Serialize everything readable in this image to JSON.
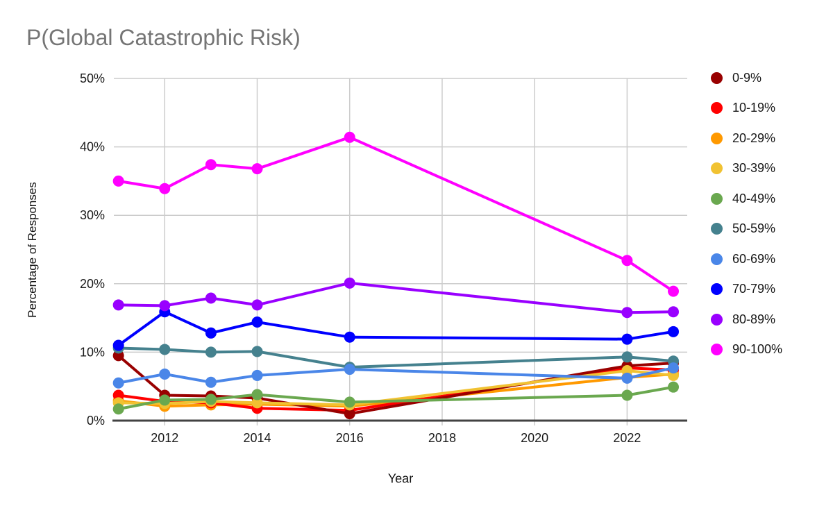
{
  "chart_data": {
    "type": "line",
    "title": "P(Global Catastrophic Risk)",
    "xlabel": "Year",
    "ylabel": "Percentage of Responses",
    "grid": true,
    "legend_position": "right",
    "marker": "circle",
    "x": [
      2011,
      2012,
      2013,
      2014,
      2016,
      2022,
      2023
    ],
    "x_ticks": [
      2012,
      2014,
      2016,
      2018,
      2020,
      2022
    ],
    "y_ticks": [
      "0%",
      "10%",
      "20%",
      "30%",
      "40%",
      "50%"
    ],
    "y_tick_values": [
      0,
      10,
      20,
      30,
      40,
      50
    ],
    "xlim": [
      2010.9,
      2023.3
    ],
    "ylim": [
      0,
      50
    ],
    "series": [
      {
        "name": "0-9%",
        "color": "#990000",
        "values": [
          9.5,
          3.7,
          3.6,
          3.3,
          1.0,
          8.0,
          8.4
        ]
      },
      {
        "name": "10-19%",
        "color": "#FF0000",
        "values": [
          3.7,
          2.8,
          2.6,
          1.8,
          1.5,
          7.7,
          7.4
        ]
      },
      {
        "name": "20-29%",
        "color": "#FF9900",
        "values": [
          2.9,
          2.1,
          2.3,
          2.4,
          2.1,
          6.3,
          6.8
        ]
      },
      {
        "name": "30-39%",
        "color": "#F1C232",
        "values": [
          2.6,
          2.5,
          2.8,
          2.6,
          2.3,
          7.3,
          6.6
        ]
      },
      {
        "name": "40-49%",
        "color": "#6AA84F",
        "values": [
          1.7,
          3.0,
          3.1,
          3.8,
          2.7,
          3.7,
          4.9
        ]
      },
      {
        "name": "50-59%",
        "color": "#45818E",
        "values": [
          10.6,
          10.4,
          10.0,
          10.1,
          7.8,
          9.3,
          8.7
        ]
      },
      {
        "name": "60-69%",
        "color": "#4A86E8",
        "values": [
          5.5,
          6.8,
          5.6,
          6.6,
          7.5,
          6.2,
          7.7
        ]
      },
      {
        "name": "70-79%",
        "color": "#0000FF",
        "values": [
          11.0,
          15.9,
          12.8,
          14.4,
          12.2,
          11.9,
          13.0
        ]
      },
      {
        "name": "80-89%",
        "color": "#9900FF",
        "values": [
          16.9,
          16.8,
          17.9,
          16.9,
          20.1,
          15.8,
          15.9
        ]
      },
      {
        "name": "90-100%",
        "color": "#FF00FF",
        "values": [
          35.0,
          33.9,
          37.4,
          36.8,
          41.4,
          23.4,
          18.9
        ]
      }
    ],
    "draw_order": [
      "20-29%",
      "10-19%",
      "0-9%",
      "30-39%",
      "40-49%",
      "50-59%",
      "60-69%",
      "70-79%",
      "80-89%",
      "90-100%"
    ]
  }
}
